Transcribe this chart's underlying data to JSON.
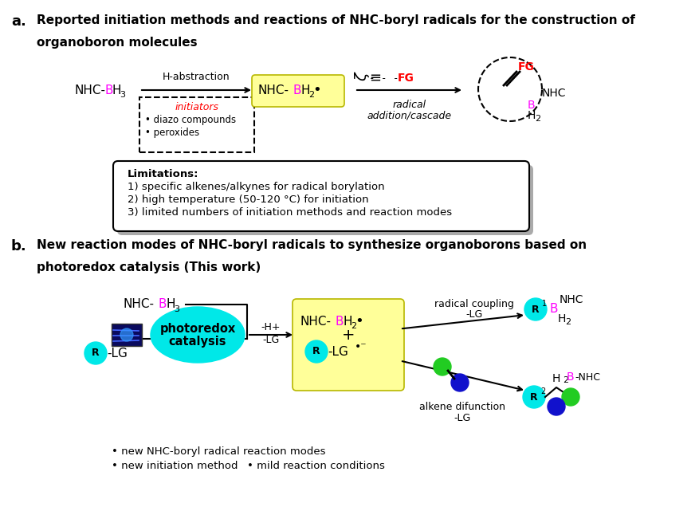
{
  "bg_color": "#ffffff",
  "magenta": "#ff00ff",
  "red": "#ff0000",
  "cyan": "#00e8e8",
  "green": "#22cc22",
  "blue_dot": "#1111cc",
  "yellow_bg": "#ffff99",
  "shadow_gray": "#aaaaaa",
  "dashed_box_color": "#000000",
  "title_a1": "Reported initiation methods and reactions of NHC-boryl radicals for the construction of",
  "title_a2": "organoboron molecules",
  "title_b1": "New reaction modes of NHC-boryl radicals to synthesize organoborons based on",
  "title_b2": "photoredox catalysis (This work)",
  "lim_title": "Limitations:",
  "lim1": "1) specific alkenes/alkynes for radical borylation",
  "lim2": "2) high temperature (50-120 °C) for initiation",
  "lim3": "3) limited numbers of initiation methods and reaction modes",
  "bullet1": "• new NHC-boryl radical reaction modes",
  "bullet2": "• new initiation method",
  "bullet3": "• mild reaction conditions"
}
